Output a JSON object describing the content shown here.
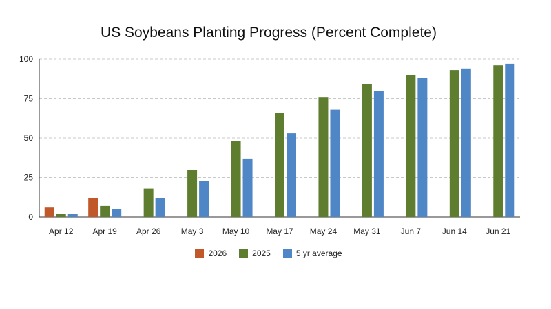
{
  "chart_data": {
    "type": "bar",
    "title": "US Soybeans Planting Progress (Percent Complete)",
    "xlabel": "",
    "ylabel": "",
    "categories": [
      "Apr 12",
      "Apr 19",
      "Apr 26",
      "May 3",
      "May 10",
      "May 17",
      "May 24",
      "May 31",
      "Jun 7",
      "Jun 14",
      "Jun 21"
    ],
    "ylim": [
      0,
      100
    ],
    "yticks": [
      0,
      25,
      50,
      75,
      100
    ],
    "grid": true,
    "legend_position": "bottom-center",
    "series": [
      {
        "name": "2026",
        "color": "#C0582A",
        "values": [
          6,
          12,
          null,
          null,
          null,
          null,
          null,
          null,
          null,
          null,
          null
        ]
      },
      {
        "name": "2025",
        "color": "#5F7D2E",
        "values": [
          2,
          7,
          18,
          30,
          48,
          66,
          76,
          84,
          90,
          93,
          96
        ]
      },
      {
        "name": "5 yr average",
        "color": "#4F86C6",
        "values": [
          2,
          5,
          12,
          23,
          37,
          53,
          68,
          80,
          88,
          94,
          97
        ]
      }
    ]
  }
}
